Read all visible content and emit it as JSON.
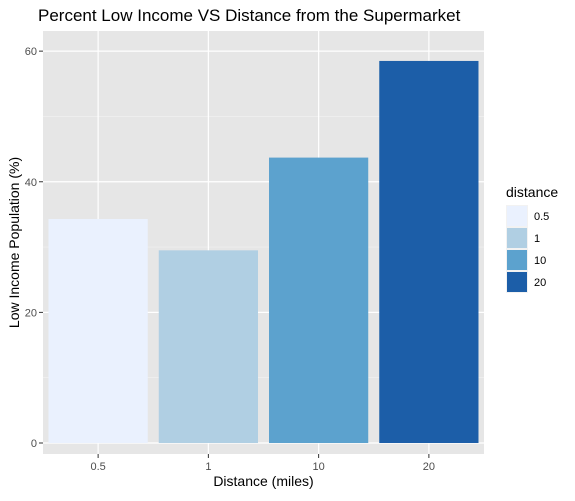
{
  "chart_data": {
    "type": "bar",
    "title": "Percent Low Income VS Distance from the Supermarket",
    "xlabel": "Distance (miles)",
    "ylabel": "Low Income Population (%)",
    "categories": [
      "0.5",
      "1",
      "10",
      "20"
    ],
    "values": [
      34.3,
      29.5,
      43.7,
      58.5
    ],
    "ylim": [
      0,
      61.4
    ],
    "yticks": [
      0,
      20,
      40,
      60
    ],
    "grid": true,
    "legend": {
      "title": "distance",
      "position": "right",
      "entries": [
        "0.5",
        "1",
        "10",
        "20"
      ]
    },
    "colors": [
      "#eaf1fe",
      "#b0cfe3",
      "#5ca2ce",
      "#1c5ea8"
    ],
    "panel_background": "#e6e6e6"
  }
}
